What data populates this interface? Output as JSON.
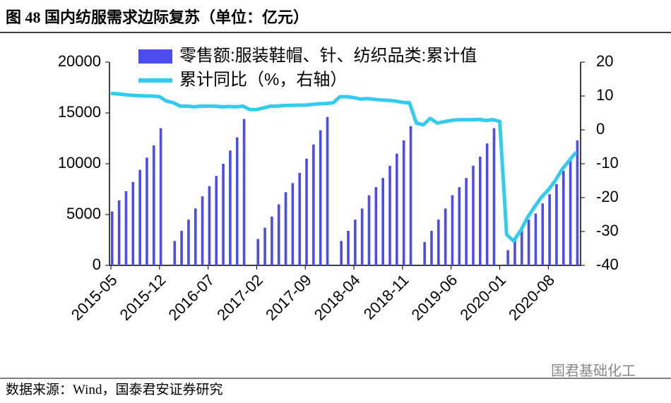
{
  "chart_data": {
    "type": "bar_line",
    "title": "图 48 国内纺服需求边际复苏（单位：亿元）",
    "source": "数据来源：Wind，国泰君安证券研究",
    "watermark": "国君基础化工",
    "categories": [
      "2015-05",
      null,
      null,
      null,
      null,
      null,
      null,
      "2015-12",
      null,
      null,
      null,
      null,
      null,
      null,
      "2016-07",
      null,
      null,
      null,
      null,
      null,
      null,
      "2017-02",
      null,
      null,
      null,
      null,
      null,
      null,
      "2017-09",
      null,
      null,
      null,
      null,
      null,
      null,
      "2018-04",
      null,
      null,
      null,
      null,
      null,
      null,
      "2018-11",
      null,
      null,
      null,
      null,
      null,
      null,
      "2019-06",
      null,
      null,
      null,
      null,
      null,
      null,
      "2020-01",
      null,
      null,
      null,
      null,
      null,
      null,
      "2020-08",
      null,
      null,
      null,
      null
    ],
    "series": [
      {
        "name": "零售额:服装鞋帽、针、纺织品类:累计值",
        "color": "#4b4bee",
        "axis": "y",
        "values": [
          5300,
          6400,
          7300,
          8200,
          9400,
          10600,
          11800,
          13500,
          null,
          2400,
          3400,
          4500,
          5600,
          6800,
          7800,
          8800,
          10000,
          11300,
          12600,
          14400,
          null,
          2600,
          3700,
          4800,
          6000,
          7200,
          8100,
          9100,
          10500,
          11900,
          13300,
          14600,
          null,
          2400,
          3400,
          4500,
          5600,
          6900,
          7700,
          8600,
          9800,
          11000,
          12300,
          13700,
          null,
          2300,
          3400,
          4500,
          5600,
          6900,
          7700,
          8600,
          9800,
          10700,
          12000,
          13500,
          null,
          1500,
          2700,
          3700,
          4500,
          5100,
          6100,
          7000,
          8000,
          9300,
          10600,
          12300
        ]
      },
      {
        "name": "累计同比（%，右轴）",
        "color": "#33ccf0",
        "axis": "y2",
        "values": [
          10.8,
          10.6,
          10.4,
          10.2,
          10.1,
          10,
          10,
          9.8,
          8.5,
          8,
          7,
          7,
          6.8,
          7,
          7,
          7,
          6.8,
          6.9,
          6.8,
          7,
          6,
          6,
          6.5,
          7,
          7,
          7.2,
          7.2,
          7.3,
          7.3,
          7.5,
          7.7,
          7.8,
          8,
          9.8,
          9.8,
          9.5,
          9.1,
          9.2,
          9,
          8.8,
          8.7,
          8.5,
          8.1,
          8,
          2,
          1.5,
          3.4,
          2,
          2.4,
          2.8,
          3,
          3,
          3,
          3.1,
          2.8,
          3,
          2.5,
          -30.9,
          -32.8,
          -29.8,
          -25.9,
          -22.8,
          -19.9,
          -17.7,
          -15,
          -11.6,
          -9.1,
          -6.6
        ]
      }
    ],
    "ylim": [
      0,
      20000
    ],
    "yticks": [
      0,
      5000,
      10000,
      15000,
      20000
    ],
    "y2lim": [
      -40,
      20
    ],
    "y2ticks": [
      -40,
      -30,
      -20,
      -10,
      0,
      10,
      20
    ]
  }
}
